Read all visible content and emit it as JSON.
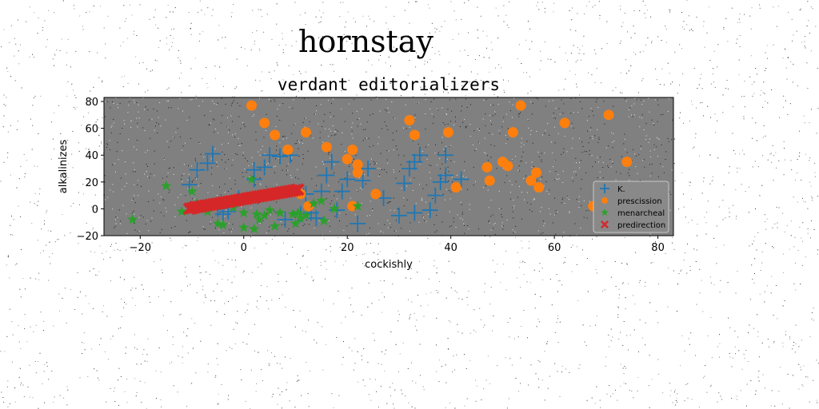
{
  "figure": {
    "suptitle": "hornstay"
  },
  "chart_data": {
    "type": "scatter",
    "title": "verdant editorializers",
    "xlabel": "cockishly",
    "ylabel": "alkalinizes",
    "xlim": [
      -27,
      83
    ],
    "ylim": [
      -20,
      83
    ],
    "xticks": [
      -20,
      0,
      20,
      40,
      60,
      80
    ],
    "yticks": [
      -20,
      0,
      20,
      40,
      60,
      80
    ],
    "xtick_labels": [
      "−20",
      "0",
      "20",
      "40",
      "60",
      "80"
    ],
    "ytick_labels": [
      "−20",
      "0",
      "20",
      "40",
      "60",
      "80"
    ],
    "grid": false,
    "legend_position": "lower right",
    "colors": {
      "plot_background": "#808080",
      "noise": "#000000"
    },
    "series": [
      {
        "name": "K.",
        "marker": "plus",
        "color": "#1f77b4",
        "points": [
          [
            -10.5,
            18
          ],
          [
            -9,
            29
          ],
          [
            -7,
            34
          ],
          [
            -6,
            41
          ],
          [
            -5,
            0
          ],
          [
            -4,
            -4
          ],
          [
            -3,
            -2
          ],
          [
            -1,
            8
          ],
          [
            2,
            22
          ],
          [
            2,
            29
          ],
          [
            4,
            31
          ],
          [
            5,
            40
          ],
          [
            7,
            39
          ],
          [
            8,
            -8
          ],
          [
            9,
            40
          ],
          [
            11,
            -4
          ],
          [
            12,
            11
          ],
          [
            13,
            -3
          ],
          [
            14,
            -7
          ],
          [
            15,
            13
          ],
          [
            16,
            25
          ],
          [
            17,
            35
          ],
          [
            18,
            -1
          ],
          [
            19,
            13
          ],
          [
            20,
            22
          ],
          [
            22,
            -11
          ],
          [
            23,
            21
          ],
          [
            24,
            30
          ],
          [
            27,
            8
          ],
          [
            30,
            -5
          ],
          [
            31,
            19
          ],
          [
            32,
            30
          ],
          [
            33,
            35
          ],
          [
            33,
            -3
          ],
          [
            34,
            40
          ],
          [
            36,
            -1
          ],
          [
            37,
            10
          ],
          [
            38,
            20
          ],
          [
            39,
            25
          ],
          [
            39,
            40
          ],
          [
            42,
            22
          ]
        ]
      },
      {
        "name": "prescission",
        "marker": "circle",
        "color": "#ff7f0e",
        "points": [
          [
            1.5,
            77
          ],
          [
            4,
            64
          ],
          [
            6,
            55
          ],
          [
            8.5,
            44
          ],
          [
            11,
            11
          ],
          [
            12,
            57
          ],
          [
            12.5,
            2
          ],
          [
            16,
            46
          ],
          [
            20,
            37
          ],
          [
            21,
            44
          ],
          [
            21,
            2
          ],
          [
            22,
            27
          ],
          [
            22,
            33
          ],
          [
            25.5,
            11
          ],
          [
            32,
            66
          ],
          [
            33,
            55
          ],
          [
            39.5,
            57
          ],
          [
            41,
            16
          ],
          [
            47,
            31
          ],
          [
            47.5,
            21
          ],
          [
            50,
            35
          ],
          [
            51,
            32
          ],
          [
            52,
            57
          ],
          [
            53.5,
            77
          ],
          [
            55.5,
            21
          ],
          [
            56.5,
            27
          ],
          [
            57,
            16
          ],
          [
            62,
            64
          ],
          [
            67.5,
            2
          ],
          [
            70.5,
            70
          ],
          [
            74,
            35
          ]
        ]
      },
      {
        "name": "menarcheal",
        "marker": "star",
        "color": "#2ca02c",
        "points": [
          [
            -21.5,
            -8
          ],
          [
            -15,
            17
          ],
          [
            -12,
            -2
          ],
          [
            -10,
            13
          ],
          [
            -9,
            4
          ],
          [
            -7,
            -2
          ],
          [
            -5,
            -11
          ],
          [
            -4,
            -12
          ],
          [
            -2,
            1
          ],
          [
            0,
            -14
          ],
          [
            0,
            -3
          ],
          [
            1.5,
            22
          ],
          [
            2,
            -15
          ],
          [
            2.5,
            -4
          ],
          [
            3,
            -8
          ],
          [
            4,
            -5
          ],
          [
            5,
            -1
          ],
          [
            6,
            -13
          ],
          [
            7,
            -3
          ],
          [
            9.5,
            -4
          ],
          [
            10,
            -11
          ],
          [
            10.5,
            -3
          ],
          [
            11,
            -7
          ],
          [
            12,
            -5
          ],
          [
            13.5,
            4
          ],
          [
            15,
            6
          ],
          [
            15.5,
            -9
          ],
          [
            17.5,
            0
          ],
          [
            22,
            2
          ]
        ]
      },
      {
        "name": "predirection",
        "marker": "x",
        "color": "#d62728",
        "points": [
          [
            -10.5,
            0
          ],
          [
            -10,
            0.5
          ],
          [
            -9.5,
            1
          ],
          [
            -9,
            1.3
          ],
          [
            -8.5,
            1.6
          ],
          [
            -8,
            2
          ],
          [
            -7.5,
            2.3
          ],
          [
            -7,
            2.6
          ],
          [
            -6.5,
            3
          ],
          [
            -6,
            3.3
          ],
          [
            -5.5,
            3.6
          ],
          [
            -5,
            4
          ],
          [
            -4.5,
            4.3
          ],
          [
            -4,
            4.6
          ],
          [
            -3.5,
            5
          ],
          [
            -3,
            5.3
          ],
          [
            -2.5,
            5.6
          ],
          [
            -2,
            6
          ],
          [
            -1.5,
            6.3
          ],
          [
            -1,
            6.6
          ],
          [
            -0.5,
            7
          ],
          [
            0,
            7.3
          ],
          [
            0.5,
            7.6
          ],
          [
            1,
            8
          ],
          [
            1.5,
            8.3
          ],
          [
            2,
            8.6
          ],
          [
            2.5,
            9
          ],
          [
            3,
            9.3
          ],
          [
            3.5,
            9.6
          ],
          [
            4,
            10
          ],
          [
            4.5,
            10.3
          ],
          [
            5,
            10.6
          ],
          [
            5.5,
            11
          ],
          [
            6,
            11.3
          ],
          [
            6.5,
            11.6
          ],
          [
            7,
            12
          ],
          [
            7.5,
            12.3
          ],
          [
            8,
            12.6
          ],
          [
            8.5,
            13
          ],
          [
            9,
            13.3
          ],
          [
            9.5,
            13.6
          ],
          [
            10,
            14
          ],
          [
            10.5,
            14.3
          ]
        ]
      }
    ]
  }
}
